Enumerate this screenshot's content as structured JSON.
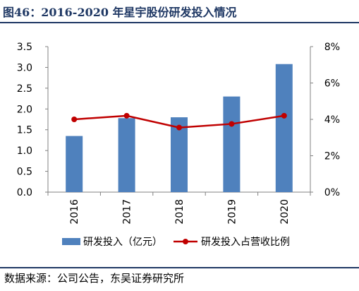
{
  "figure": {
    "title": "图46：2016-2020 年星宇股份研发投入情况",
    "source": "数据来源：公司公告，东吴证券研究所"
  },
  "chart_data": {
    "type": "bar",
    "categories": [
      "2016",
      "2017",
      "2018",
      "2019",
      "2020"
    ],
    "series": [
      {
        "name": "研发投入（亿元）",
        "type": "bar",
        "axis": "left",
        "values": [
          1.35,
          1.78,
          1.8,
          2.3,
          3.08
        ],
        "color": "#4f81bd"
      },
      {
        "name": "研发投入占营收比例",
        "type": "line",
        "axis": "right",
        "values": [
          4.0,
          4.2,
          3.55,
          3.75,
          4.2
        ],
        "unit": "%",
        "color": "#c00000"
      }
    ],
    "y_left": {
      "min": 0,
      "max": 3.5,
      "step": 0.5,
      "ticks": [
        "0.0",
        "0.5",
        "1.0",
        "1.5",
        "2.0",
        "2.5",
        "3.0",
        "3.5"
      ]
    },
    "y_right": {
      "min": 0,
      "max": 8,
      "step": 2,
      "ticks": [
        "0%",
        "2%",
        "4%",
        "6%",
        "8%"
      ]
    },
    "grid": false,
    "legend_position": "bottom"
  }
}
